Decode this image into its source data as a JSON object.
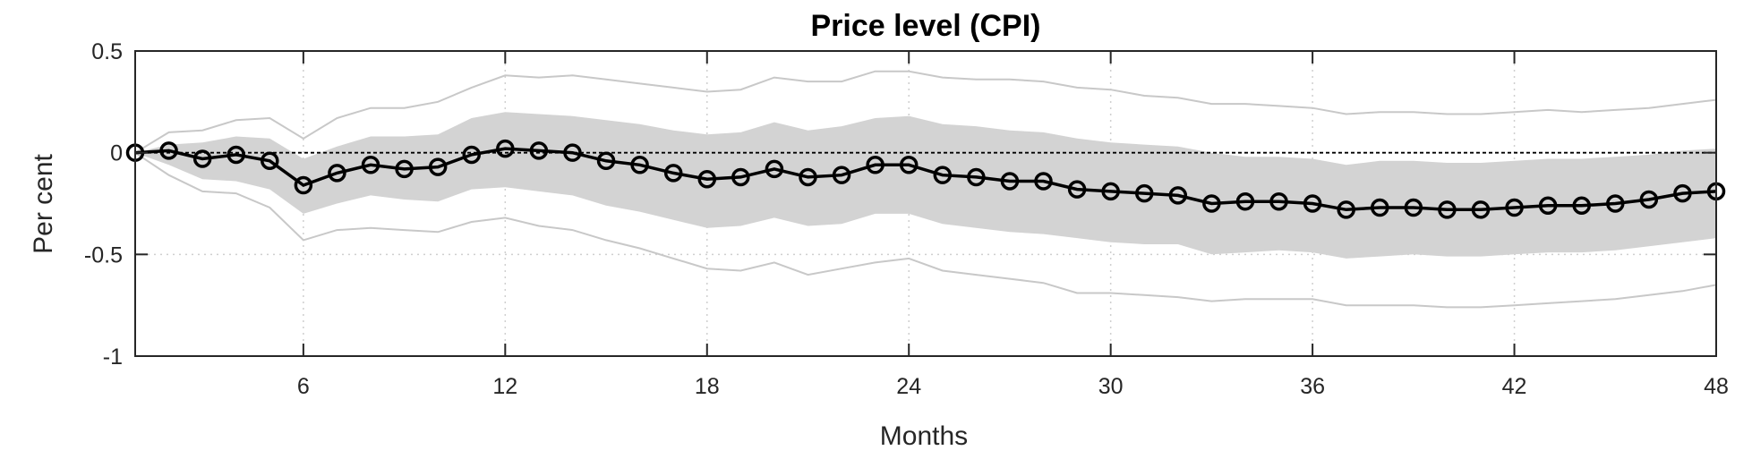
{
  "chart_data": {
    "type": "line",
    "title": "Price level (CPI)",
    "xlabel": "Months",
    "ylabel": "Per cent",
    "xlim": [
      1,
      48
    ],
    "ylim": [
      -1,
      0.5
    ],
    "xticks": [
      6,
      12,
      18,
      24,
      30,
      36,
      42,
      48
    ],
    "yticks": [
      -1,
      -0.5,
      0,
      0.5
    ],
    "xtick_labels": [
      "6",
      "12",
      "18",
      "24",
      "30",
      "36",
      "42",
      "48"
    ],
    "ytick_labels": [
      "-1",
      "-0.5",
      "0",
      "0.5"
    ],
    "grid": true,
    "zero_line": "dashed",
    "x": [
      1,
      2,
      3,
      4,
      5,
      6,
      7,
      8,
      9,
      10,
      11,
      12,
      13,
      14,
      15,
      16,
      17,
      18,
      19,
      20,
      21,
      22,
      23,
      24,
      25,
      26,
      27,
      28,
      29,
      30,
      31,
      32,
      33,
      34,
      35,
      36,
      37,
      38,
      39,
      40,
      41,
      42,
      43,
      44,
      45,
      46,
      47,
      48
    ],
    "series": [
      {
        "role": "point-estimate",
        "marker": "circle",
        "color": "#000000",
        "values": [
          0.0,
          0.01,
          -0.03,
          -0.01,
          -0.04,
          -0.16,
          -0.1,
          -0.06,
          -0.08,
          -0.07,
          -0.01,
          0.02,
          0.01,
          0.0,
          -0.04,
          -0.06,
          -0.1,
          -0.13,
          -0.12,
          -0.08,
          -0.12,
          -0.11,
          -0.06,
          -0.06,
          -0.11,
          -0.12,
          -0.14,
          -0.14,
          -0.18,
          -0.19,
          -0.2,
          -0.21,
          -0.25,
          -0.24,
          -0.24,
          -0.25,
          -0.28,
          -0.27,
          -0.27,
          -0.28,
          -0.28,
          -0.27,
          -0.26,
          -0.26,
          -0.25,
          -0.23,
          -0.2,
          -0.19
        ]
      },
      {
        "role": "inner-band-upper",
        "color": "#d3d3d3",
        "values": [
          0.0,
          0.04,
          0.05,
          0.08,
          0.07,
          -0.03,
          0.03,
          0.08,
          0.08,
          0.09,
          0.17,
          0.2,
          0.19,
          0.18,
          0.16,
          0.14,
          0.11,
          0.09,
          0.1,
          0.15,
          0.11,
          0.13,
          0.17,
          0.18,
          0.14,
          0.13,
          0.11,
          0.1,
          0.07,
          0.05,
          0.04,
          0.03,
          0.0,
          -0.02,
          -0.02,
          -0.03,
          -0.06,
          -0.04,
          -0.04,
          -0.05,
          -0.05,
          -0.04,
          -0.03,
          -0.03,
          -0.02,
          -0.01,
          0.01,
          0.02
        ]
      },
      {
        "role": "inner-band-lower",
        "color": "#d3d3d3",
        "values": [
          0.0,
          -0.06,
          -0.13,
          -0.14,
          -0.18,
          -0.3,
          -0.25,
          -0.21,
          -0.23,
          -0.24,
          -0.18,
          -0.17,
          -0.19,
          -0.21,
          -0.26,
          -0.29,
          -0.33,
          -0.37,
          -0.36,
          -0.32,
          -0.36,
          -0.35,
          -0.3,
          -0.3,
          -0.35,
          -0.37,
          -0.39,
          -0.4,
          -0.42,
          -0.44,
          -0.45,
          -0.45,
          -0.5,
          -0.49,
          -0.48,
          -0.49,
          -0.52,
          -0.51,
          -0.5,
          -0.51,
          -0.51,
          -0.5,
          -0.49,
          -0.49,
          -0.48,
          -0.46,
          -0.44,
          -0.42
        ]
      },
      {
        "role": "outer-band-upper",
        "color": "#c8c8c8",
        "values": [
          0.0,
          0.1,
          0.11,
          0.16,
          0.17,
          0.07,
          0.17,
          0.22,
          0.22,
          0.25,
          0.32,
          0.38,
          0.37,
          0.38,
          0.36,
          0.34,
          0.32,
          0.3,
          0.31,
          0.37,
          0.35,
          0.35,
          0.4,
          0.4,
          0.37,
          0.36,
          0.36,
          0.35,
          0.32,
          0.31,
          0.28,
          0.27,
          0.24,
          0.24,
          0.23,
          0.22,
          0.19,
          0.2,
          0.2,
          0.19,
          0.19,
          0.2,
          0.21,
          0.2,
          0.21,
          0.22,
          0.24,
          0.26
        ]
      },
      {
        "role": "outer-band-lower",
        "color": "#c8c8c8",
        "values": [
          0.0,
          -0.11,
          -0.19,
          -0.2,
          -0.27,
          -0.43,
          -0.38,
          -0.37,
          -0.38,
          -0.39,
          -0.34,
          -0.32,
          -0.36,
          -0.38,
          -0.43,
          -0.47,
          -0.52,
          -0.57,
          -0.58,
          -0.54,
          -0.6,
          -0.57,
          -0.54,
          -0.52,
          -0.58,
          -0.6,
          -0.62,
          -0.64,
          -0.69,
          -0.69,
          -0.7,
          -0.71,
          -0.73,
          -0.72,
          -0.72,
          -0.72,
          -0.75,
          -0.75,
          -0.75,
          -0.76,
          -0.76,
          -0.75,
          -0.74,
          -0.73,
          -0.72,
          -0.7,
          -0.68,
          -0.65
        ]
      }
    ]
  }
}
